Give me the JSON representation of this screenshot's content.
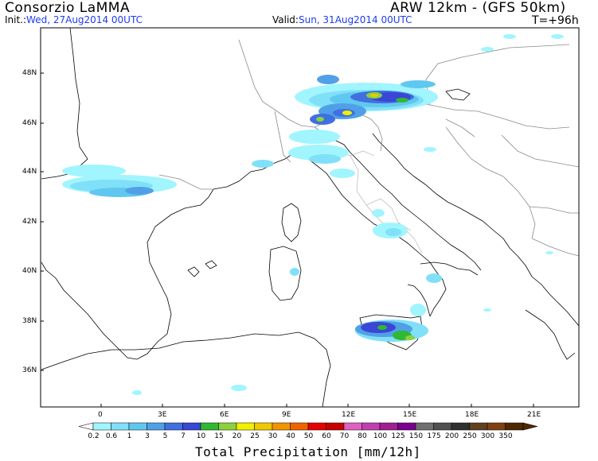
{
  "header": {
    "title": "Consorzio LaMMA",
    "model": "ARW 12km  -  (GFS 50km)",
    "init_label": "Init.:",
    "init_value": "Wed, 27Aug2014 00UTC",
    "valid_label": "Valid:",
    "valid_value": "Sun, 31Aug2014 00UTC",
    "step": "T=+96h"
  },
  "axes": {
    "lat_labels": [
      "48N",
      "46N",
      "44N",
      "42N",
      "40N",
      "38N",
      "36N"
    ],
    "lon_labels": [
      "0",
      "3E",
      "6E",
      "9E",
      "12E",
      "15E",
      "18E",
      "21E"
    ]
  },
  "colorbar": {
    "levels": [
      "0.2",
      "0.6",
      "1",
      "3",
      "5",
      "7",
      "10",
      "15",
      "20",
      "25",
      "30",
      "40",
      "50",
      "60",
      "70",
      "80",
      "100",
      "125",
      "150",
      "175",
      "200",
      "250",
      "300",
      "350"
    ],
    "colors": [
      "#a0f5ff",
      "#80e0f8",
      "#60c8f0",
      "#50a0e8",
      "#4070e0",
      "#3a46d6",
      "#30b830",
      "#8cd23c",
      "#f0f000",
      "#f0c800",
      "#f09600",
      "#f06400",
      "#e60000",
      "#c80000",
      "#e060c0",
      "#c040b0",
      "#a02090",
      "#7a0090",
      "#707070",
      "#505050",
      "#303030",
      "#604020",
      "#804010",
      "#502800"
    ],
    "units": "Total Precipitation [mm/12h]"
  }
}
